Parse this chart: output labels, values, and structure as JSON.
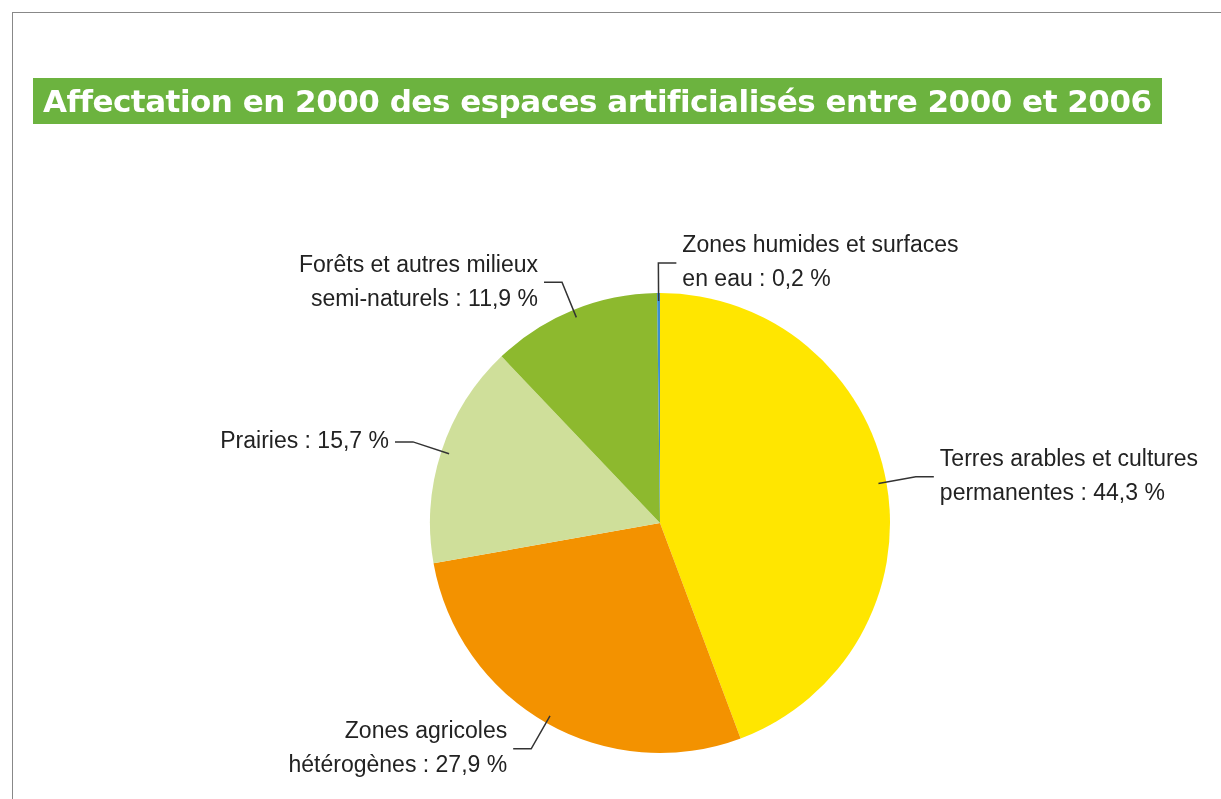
{
  "chart_data": {
    "type": "pie",
    "title": "Affectation en 2000 des espaces artificialisés entre 2000 et 2006",
    "categories": [
      "Terres arables et cultures permanentes",
      "Zones agricoles hétérogènes",
      "Prairies",
      "Forêts et autres milieux semi-naturels",
      "Zones humides et surfaces en eau"
    ],
    "values": [
      44.3,
      27.9,
      15.7,
      11.9,
      0.2
    ],
    "value_labels": [
      "44,3 %",
      "27,9 %",
      "15,7 %",
      "11,9 %",
      "0,2 %"
    ],
    "colors": [
      "#ffe600",
      "#f39200",
      "#cfdf9a",
      "#8db92e",
      "#3c8fd0"
    ],
    "legend": false
  }
}
